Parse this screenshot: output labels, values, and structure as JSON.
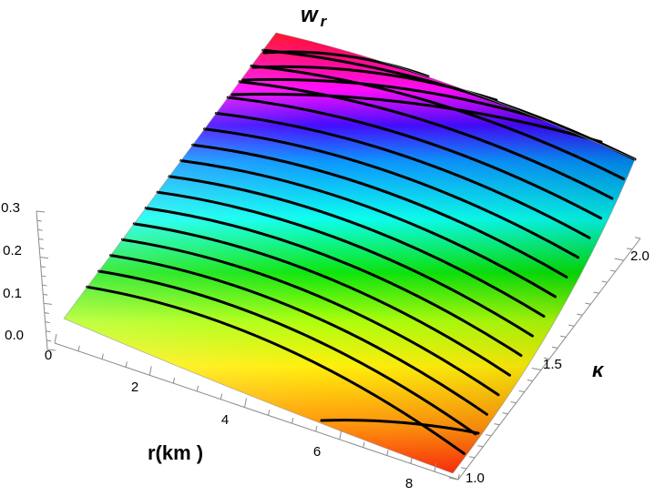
{
  "chart_data": {
    "type": "surface",
    "title": "w",
    "title_subscript": "r",
    "x_axis": {
      "label": "r(km )",
      "ticks": [
        0,
        2,
        4,
        6,
        8
      ],
      "tick_labels": [
        "0",
        "2",
        "4",
        "6",
        "8"
      ],
      "range": [
        0,
        8.5
      ]
    },
    "y_axis": {
      "label": "κ",
      "ticks": [
        1.0,
        1.5,
        2.0
      ],
      "tick_labels": [
        "1.0",
        "1.5",
        "2.0"
      ],
      "range": [
        1.0,
        2.1
      ]
    },
    "z_axis": {
      "label": "",
      "ticks": [
        0.0,
        0.1,
        0.2,
        0.3
      ],
      "tick_labels": [
        "0.0",
        "0.1",
        "0.2",
        "0.3"
      ],
      "range": [
        0.0,
        0.3
      ]
    },
    "color_map": "rainbow (yellow at low w, through green, cyan, blue, magenta, to red at high w)",
    "contour_count": 17,
    "mesh": "none",
    "grid": false
  }
}
